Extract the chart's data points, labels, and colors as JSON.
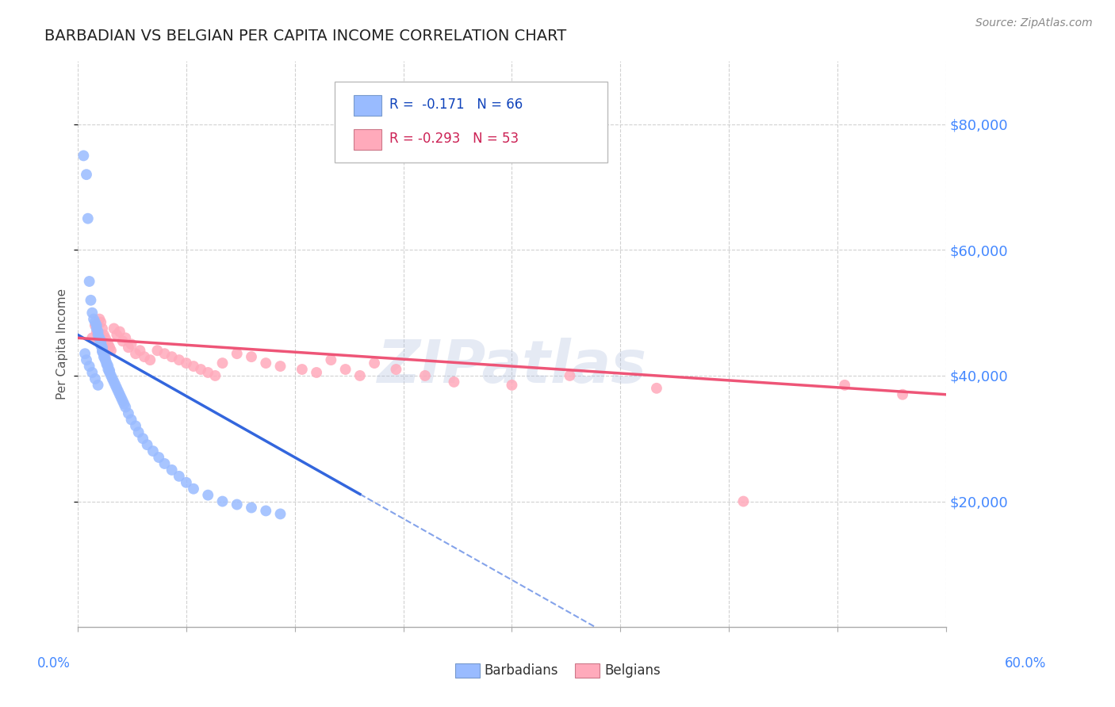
{
  "title": "BARBADIAN VS BELGIAN PER CAPITA INCOME CORRELATION CHART",
  "source": "Source: ZipAtlas.com",
  "ylabel": "Per Capita Income",
  "ytick_labels": [
    "$20,000",
    "$40,000",
    "$60,000",
    "$80,000"
  ],
  "ytick_values": [
    20000,
    40000,
    60000,
    80000
  ],
  "ylim": [
    0,
    90000
  ],
  "xlim": [
    0.0,
    0.6
  ],
  "watermark": "ZIPatlas",
  "legend_blue_r": "R =  -0.171",
  "legend_blue_n": "N = 66",
  "legend_pink_r": "R = -0.293",
  "legend_pink_n": "N = 53",
  "blue_scatter_color": "#99bbff",
  "pink_scatter_color": "#ffaabb",
  "trend_blue_color": "#3366dd",
  "trend_pink_color": "#ee5577",
  "background_color": "#ffffff",
  "grid_color": "#cccccc",
  "right_axis_color": "#4488ff",
  "barbadians_x": [
    0.004,
    0.006,
    0.007,
    0.008,
    0.009,
    0.01,
    0.011,
    0.012,
    0.013,
    0.013,
    0.014,
    0.014,
    0.015,
    0.015,
    0.016,
    0.016,
    0.016,
    0.017,
    0.017,
    0.017,
    0.018,
    0.018,
    0.019,
    0.019,
    0.02,
    0.02,
    0.021,
    0.021,
    0.022,
    0.022,
    0.023,
    0.024,
    0.025,
    0.026,
    0.027,
    0.028,
    0.029,
    0.03,
    0.031,
    0.032,
    0.033,
    0.035,
    0.037,
    0.04,
    0.042,
    0.045,
    0.048,
    0.052,
    0.056,
    0.06,
    0.065,
    0.07,
    0.075,
    0.08,
    0.09,
    0.1,
    0.11,
    0.12,
    0.13,
    0.14,
    0.005,
    0.006,
    0.008,
    0.01,
    0.012,
    0.014
  ],
  "barbadians_y": [
    75000,
    72000,
    65000,
    55000,
    52000,
    50000,
    49000,
    48500,
    48000,
    47500,
    47000,
    46500,
    46000,
    45800,
    45500,
    45200,
    44800,
    44500,
    44000,
    43800,
    43500,
    43000,
    42800,
    42500,
    42000,
    41800,
    41500,
    41000,
    40800,
    40500,
    40000,
    39500,
    39000,
    38500,
    38000,
    37500,
    37000,
    36500,
    36000,
    35500,
    35000,
    34000,
    33000,
    32000,
    31000,
    30000,
    29000,
    28000,
    27000,
    26000,
    25000,
    24000,
    23000,
    22000,
    21000,
    20000,
    19500,
    19000,
    18500,
    18000,
    43500,
    42500,
    41500,
    40500,
    39500,
    38500
  ],
  "belgians_x": [
    0.01,
    0.012,
    0.013,
    0.014,
    0.015,
    0.016,
    0.017,
    0.018,
    0.019,
    0.02,
    0.021,
    0.022,
    0.023,
    0.025,
    0.027,
    0.029,
    0.031,
    0.033,
    0.035,
    0.037,
    0.04,
    0.043,
    0.046,
    0.05,
    0.055,
    0.06,
    0.065,
    0.07,
    0.075,
    0.08,
    0.085,
    0.09,
    0.095,
    0.1,
    0.11,
    0.12,
    0.13,
    0.14,
    0.155,
    0.165,
    0.175,
    0.185,
    0.195,
    0.205,
    0.22,
    0.24,
    0.26,
    0.3,
    0.34,
    0.4,
    0.46,
    0.53,
    0.57
  ],
  "belgians_y": [
    46000,
    48000,
    47000,
    46000,
    49000,
    48500,
    47500,
    46500,
    46000,
    45500,
    45000,
    44500,
    44000,
    47500,
    46500,
    47000,
    45500,
    46000,
    44500,
    45000,
    43500,
    44000,
    43000,
    42500,
    44000,
    43500,
    43000,
    42500,
    42000,
    41500,
    41000,
    40500,
    40000,
    42000,
    43500,
    43000,
    42000,
    41500,
    41000,
    40500,
    42500,
    41000,
    40000,
    42000,
    41000,
    40000,
    39000,
    38500,
    40000,
    38000,
    20000,
    38500,
    37000
  ]
}
